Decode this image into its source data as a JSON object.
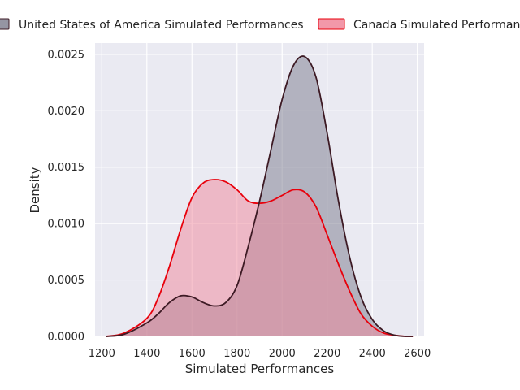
{
  "chart_data": {
    "type": "area",
    "title": "",
    "xlabel": "Simulated Performances",
    "ylabel": "Density",
    "xlim": [
      1170,
      2630
    ],
    "ylim": [
      0,
      0.0026
    ],
    "xticks": [
      1200,
      1400,
      1600,
      1800,
      2000,
      2200,
      2400,
      2600
    ],
    "xtick_labels": [
      "1200",
      "1400",
      "1600",
      "1800",
      "2000",
      "2200",
      "2400",
      "2600"
    ],
    "yticks": [
      0,
      0.0005,
      0.001,
      0.0015,
      0.002,
      0.0025
    ],
    "ytick_labels": [
      "0.0000",
      "0.0005",
      "0.0010",
      "0.0015",
      "0.0020",
      "0.0025"
    ],
    "grid": true,
    "legend_position": "top",
    "x": [
      1220,
      1300,
      1400,
      1450,
      1500,
      1550,
      1600,
      1650,
      1700,
      1750,
      1800,
      1850,
      1900,
      1950,
      2000,
      2050,
      2100,
      2150,
      2200,
      2250,
      2300,
      2350,
      2400,
      2450,
      2500,
      2550,
      2580
    ],
    "series": [
      {
        "name": "United States of America Simulated Performances",
        "line_color": "#3d1a24",
        "fill_color": "#7a7a8c",
        "values": [
          0.0,
          2e-05,
          0.00012,
          0.0002,
          0.0003,
          0.00036,
          0.00035,
          0.0003,
          0.00027,
          0.0003,
          0.00045,
          0.0008,
          0.0012,
          0.00165,
          0.0021,
          0.0024,
          0.00248,
          0.0023,
          0.0018,
          0.0012,
          0.0007,
          0.00035,
          0.00015,
          5e-05,
          1e-05,
          0.0,
          0.0
        ]
      },
      {
        "name": "Canada Simulated Performances",
        "line_color": "#e8000b",
        "fill_color": "#f0869a",
        "values": [
          0.0,
          3e-05,
          0.00016,
          0.00034,
          0.00062,
          0.00095,
          0.00123,
          0.00136,
          0.00139,
          0.00137,
          0.0013,
          0.0012,
          0.00118,
          0.0012,
          0.00125,
          0.0013,
          0.00128,
          0.00115,
          0.0009,
          0.00064,
          0.0004,
          0.0002,
          9e-05,
          3e-05,
          1e-05,
          0.0,
          0.0
        ]
      }
    ]
  }
}
